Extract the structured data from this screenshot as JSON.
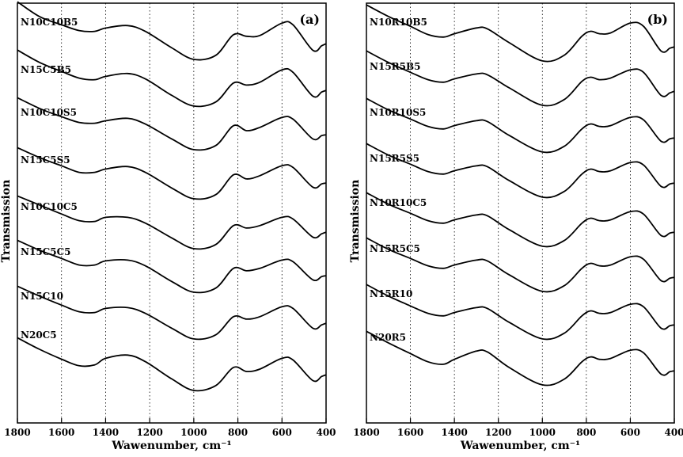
{
  "chart_data": [
    {
      "type": "line",
      "panel_label": "(a)",
      "xlabel": "Wawenumber, cm⁻¹",
      "ylabel": "Transmission",
      "xlim": [
        1800,
        400
      ],
      "x_ticks": [
        1800,
        1600,
        1400,
        1200,
        1000,
        800,
        600,
        400
      ],
      "grid": "dotted vertical lines at 1600, 1400, 1200, 1000, 800, 600",
      "series": [
        {
          "name": "N10C10B5",
          "x": [
            1800,
            1700,
            1600,
            1520,
            1450,
            1400,
            1300,
            1220,
            1100,
            1000,
            900,
            820,
            760,
            700,
            600,
            550,
            460,
            420,
            400
          ],
          "y": [
            0.92,
            0.56,
            0.36,
            0.22,
            0.2,
            0.28,
            0.34,
            0.2,
            -0.2,
            -0.48,
            -0.38,
            0.12,
            0.08,
            0.1,
            0.4,
            0.36,
            -0.26,
            -0.15,
            -0.1
          ]
        },
        {
          "name": "N15C5B5",
          "x": [
            1800,
            1700,
            1600,
            1520,
            1450,
            1400,
            1300,
            1220,
            1100,
            1000,
            900,
            820,
            760,
            700,
            600,
            550,
            460,
            420,
            400
          ],
          "y": [
            0.9,
            0.6,
            0.38,
            0.22,
            0.18,
            0.26,
            0.33,
            0.2,
            -0.2,
            -0.46,
            -0.36,
            0.1,
            0.05,
            0.12,
            0.42,
            0.36,
            -0.22,
            -0.12,
            -0.08
          ]
        },
        {
          "name": "N10C10S5",
          "x": [
            1800,
            1700,
            1600,
            1520,
            1450,
            1400,
            1300,
            1220,
            1100,
            1000,
            900,
            820,
            760,
            700,
            600,
            550,
            460,
            420,
            400
          ],
          "y": [
            0.82,
            0.56,
            0.36,
            0.22,
            0.2,
            0.26,
            0.32,
            0.18,
            -0.18,
            -0.44,
            -0.34,
            0.14,
            0.02,
            0.1,
            0.34,
            0.3,
            -0.18,
            -0.1,
            -0.08
          ]
        },
        {
          "name": "N15C5S5",
          "x": [
            1800,
            1700,
            1600,
            1520,
            1450,
            1400,
            1300,
            1220,
            1100,
            1000,
            900,
            820,
            760,
            700,
            600,
            550,
            460,
            420,
            400
          ],
          "y": [
            0.8,
            0.56,
            0.36,
            0.2,
            0.2,
            0.28,
            0.34,
            0.2,
            -0.18,
            -0.44,
            -0.34,
            0.14,
            0.04,
            0.12,
            0.36,
            0.32,
            -0.16,
            -0.08,
            -0.06
          ]
        },
        {
          "name": "N10C10C5",
          "x": [
            1800,
            1700,
            1600,
            1520,
            1450,
            1400,
            1300,
            1220,
            1100,
            1000,
            900,
            820,
            760,
            700,
            600,
            550,
            460,
            420,
            400
          ],
          "y": [
            0.82,
            0.6,
            0.38,
            0.22,
            0.2,
            0.3,
            0.3,
            0.16,
            -0.2,
            -0.46,
            -0.36,
            0.1,
            0.04,
            0.1,
            0.3,
            0.26,
            -0.18,
            -0.1,
            -0.06
          ]
        },
        {
          "name": "N15C5C5",
          "x": [
            1800,
            1700,
            1600,
            1520,
            1450,
            1400,
            1300,
            1220,
            1100,
            1000,
            900,
            820,
            760,
            700,
            600,
            550,
            460,
            420,
            400
          ],
          "y": [
            0.8,
            0.56,
            0.36,
            0.2,
            0.2,
            0.3,
            0.32,
            0.18,
            -0.2,
            -0.46,
            -0.36,
            0.12,
            0.06,
            0.12,
            0.32,
            0.28,
            -0.16,
            -0.08,
            -0.06
          ]
        },
        {
          "name": "N15C10",
          "x": [
            1800,
            1700,
            1600,
            1520,
            1450,
            1400,
            1300,
            1220,
            1100,
            1000,
            900,
            820,
            760,
            700,
            600,
            550,
            460,
            420,
            400
          ],
          "y": [
            0.84,
            0.6,
            0.38,
            0.22,
            0.2,
            0.3,
            0.32,
            0.18,
            -0.18,
            -0.44,
            -0.34,
            0.1,
            0.04,
            0.1,
            0.34,
            0.3,
            -0.18,
            -0.1,
            -0.06
          ]
        },
        {
          "name": "N20C5",
          "x": [
            1800,
            1700,
            1600,
            1520,
            1450,
            1400,
            1300,
            1220,
            1100,
            1000,
            900,
            820,
            760,
            700,
            600,
            550,
            460,
            420,
            400
          ],
          "y": [
            0.78,
            0.5,
            0.26,
            0.1,
            0.12,
            0.28,
            0.36,
            0.2,
            -0.22,
            -0.5,
            -0.38,
            0.06,
            -0.04,
            0.02,
            0.28,
            0.24,
            -0.26,
            -0.16,
            -0.12
          ]
        }
      ]
    },
    {
      "type": "line",
      "panel_label": "(b)",
      "xlabel": "Wawenumber, cm⁻¹",
      "ylabel": "Transmission",
      "xlim": [
        1800,
        400
      ],
      "x_ticks": [
        1800,
        1600,
        1400,
        1200,
        1000,
        800,
        600,
        400
      ],
      "grid": "dotted vertical lines at 1600, 1400, 1200, 1000, 800, 600",
      "series": [
        {
          "name": "N10R10B5",
          "x": [
            1800,
            1700,
            1600,
            1520,
            1450,
            1400,
            1300,
            1250,
            1150,
            1000,
            900,
            820,
            780,
            740,
            690,
            600,
            540,
            460,
            420,
            400
          ],
          "y": [
            0.9,
            0.62,
            0.38,
            0.18,
            0.12,
            0.2,
            0.34,
            0.32,
            -0.02,
            -0.46,
            -0.32,
            0.14,
            0.26,
            0.2,
            0.22,
            0.46,
            0.38,
            -0.22,
            -0.15,
            -0.12
          ]
        },
        {
          "name": "N15R5B5",
          "x": [
            1800,
            1700,
            1600,
            1520,
            1450,
            1400,
            1300,
            1250,
            1150,
            1000,
            900,
            820,
            780,
            740,
            690,
            600,
            540,
            460,
            420,
            400
          ],
          "y": [
            0.88,
            0.6,
            0.36,
            0.18,
            0.12,
            0.2,
            0.32,
            0.3,
            -0.02,
            -0.44,
            -0.3,
            0.14,
            0.24,
            0.18,
            0.22,
            0.42,
            0.36,
            -0.2,
            -0.14,
            -0.1
          ]
        },
        {
          "name": "N10R10S5",
          "x": [
            1800,
            1700,
            1600,
            1520,
            1450,
            1400,
            1300,
            1250,
            1150,
            1000,
            900,
            820,
            780,
            740,
            690,
            600,
            540,
            460,
            420,
            400
          ],
          "y": [
            0.86,
            0.58,
            0.36,
            0.18,
            0.12,
            0.2,
            0.32,
            0.3,
            -0.04,
            -0.44,
            -0.3,
            0.12,
            0.24,
            0.18,
            0.2,
            0.4,
            0.34,
            -0.18,
            -0.12,
            -0.1
          ]
        },
        {
          "name": "N15R5S5",
          "x": [
            1800,
            1700,
            1600,
            1520,
            1450,
            1400,
            1300,
            1250,
            1150,
            1000,
            900,
            820,
            780,
            740,
            690,
            600,
            540,
            460,
            420,
            400
          ],
          "y": [
            0.86,
            0.58,
            0.36,
            0.18,
            0.12,
            0.2,
            0.32,
            0.3,
            -0.04,
            -0.44,
            -0.3,
            0.12,
            0.24,
            0.18,
            0.2,
            0.4,
            0.34,
            -0.18,
            -0.12,
            -0.1
          ]
        },
        {
          "name": "N10R10C5",
          "x": [
            1800,
            1700,
            1600,
            1520,
            1450,
            1400,
            1300,
            1250,
            1150,
            1000,
            900,
            820,
            780,
            740,
            690,
            600,
            540,
            460,
            420,
            400
          ],
          "y": [
            0.86,
            0.58,
            0.36,
            0.18,
            0.12,
            0.2,
            0.32,
            0.3,
            -0.04,
            -0.44,
            -0.3,
            0.12,
            0.24,
            0.18,
            0.2,
            0.4,
            0.34,
            -0.18,
            -0.12,
            -0.1
          ]
        },
        {
          "name": "N15R5C5",
          "x": [
            1800,
            1700,
            1600,
            1520,
            1450,
            1400,
            1300,
            1250,
            1150,
            1000,
            900,
            820,
            780,
            740,
            690,
            600,
            540,
            460,
            420,
            400
          ],
          "y": [
            0.86,
            0.58,
            0.36,
            0.18,
            0.12,
            0.2,
            0.32,
            0.3,
            -0.04,
            -0.44,
            -0.3,
            0.12,
            0.24,
            0.18,
            0.2,
            0.4,
            0.34,
            -0.18,
            -0.12,
            -0.1
          ]
        },
        {
          "name": "N15R10",
          "x": [
            1800,
            1700,
            1600,
            1520,
            1450,
            1400,
            1300,
            1250,
            1150,
            1000,
            900,
            820,
            780,
            740,
            690,
            600,
            540,
            460,
            420,
            400
          ],
          "y": [
            0.88,
            0.6,
            0.36,
            0.18,
            0.12,
            0.2,
            0.32,
            0.3,
            -0.04,
            -0.44,
            -0.3,
            0.12,
            0.24,
            0.18,
            0.2,
            0.4,
            0.34,
            -0.18,
            -0.12,
            -0.1
          ]
        },
        {
          "name": "N20R5",
          "x": [
            1800,
            1700,
            1600,
            1520,
            1450,
            1400,
            1300,
            1250,
            1150,
            1000,
            900,
            820,
            780,
            740,
            690,
            600,
            540,
            460,
            420,
            400
          ],
          "y": [
            0.84,
            0.56,
            0.3,
            0.1,
            0.04,
            0.16,
            0.36,
            0.34,
            -0.04,
            -0.46,
            -0.32,
            0.1,
            0.22,
            0.16,
            0.18,
            0.38,
            0.32,
            -0.2,
            -0.14,
            -0.12
          ]
        }
      ]
    }
  ]
}
